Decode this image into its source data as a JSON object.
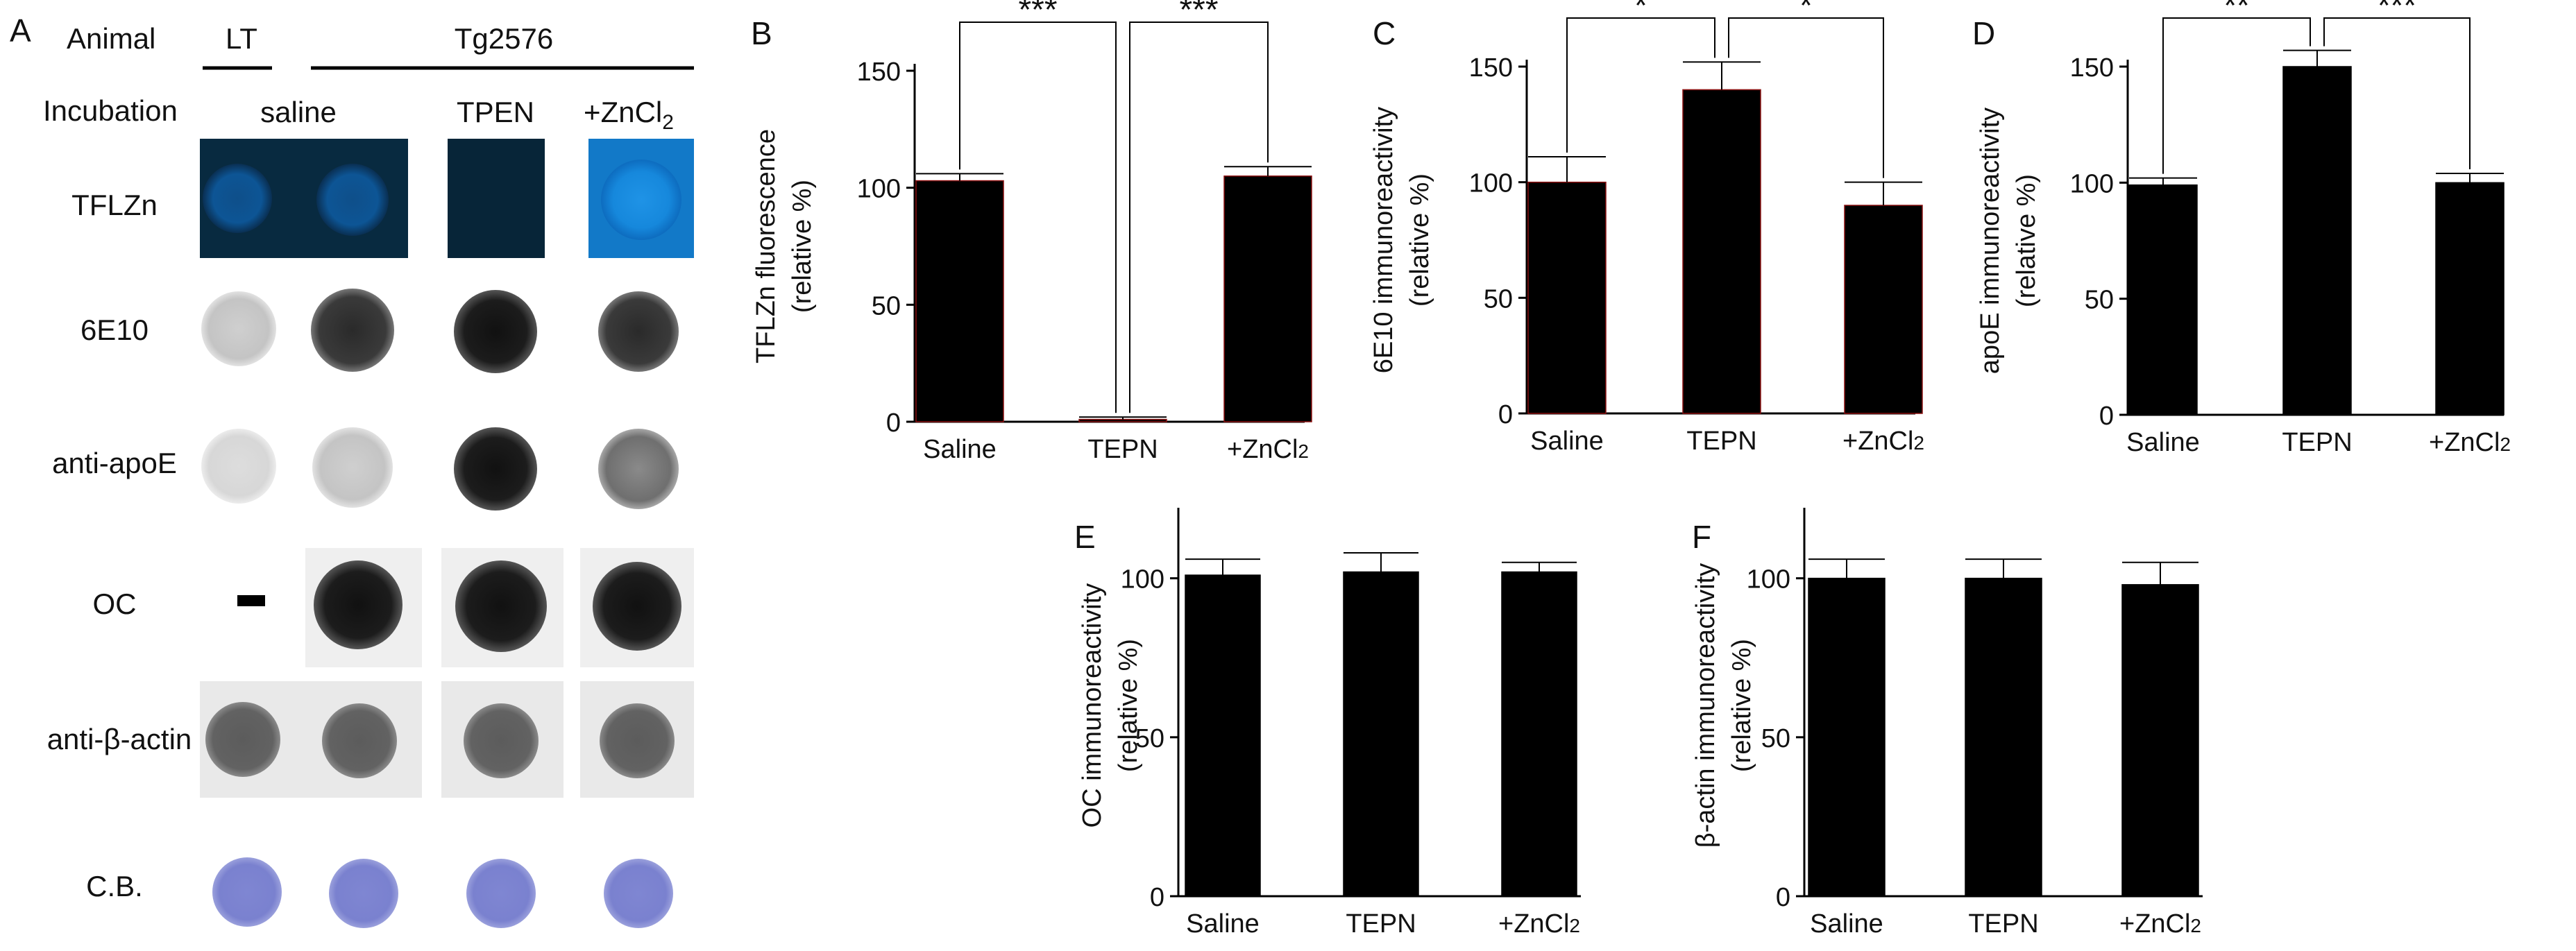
{
  "panel_a": {
    "letter": "A",
    "animal_label": "Animal",
    "incubation_label": "Incubation",
    "groups": {
      "lt": "LT",
      "tg": "Tg2576"
    },
    "incubations": {
      "saline": "saline",
      "tpen": "TPEN",
      "zncl": "+ZnCl",
      "zncl_sub": "2"
    },
    "rows": {
      "tflzn": "TFLZn",
      "e10": "6E10",
      "apoe": "anti-apoE",
      "oc": "OC",
      "actin": "anti-β-actin",
      "cb": "C.B."
    }
  },
  "chart_data": [
    {
      "type": "bar",
      "panel": "B",
      "categories": [
        "Saline",
        "TEPN",
        "+ZnCl2"
      ],
      "values": [
        103,
        1,
        105
      ],
      "errors": [
        3,
        1,
        4
      ],
      "ylabel": "TFLZn fluorescence",
      "ylabel2": "(relative %)",
      "ylim": [
        0,
        150
      ],
      "yticks": [
        0,
        50,
        100,
        150
      ],
      "significance": [
        {
          "from": 0,
          "to": 1,
          "label": "***"
        },
        {
          "from": 1,
          "to": 2,
          "label": "***"
        }
      ]
    },
    {
      "type": "bar",
      "panel": "C",
      "categories": [
        "Saline",
        "TEPN",
        "+ZnCl2"
      ],
      "values": [
        100,
        140,
        90
      ],
      "errors": [
        11,
        12,
        10
      ],
      "ylabel": "6E10 immunoreactivity",
      "ylabel2": "(relative %)",
      "ylim": [
        0,
        150
      ],
      "yticks": [
        0,
        50,
        100,
        150
      ],
      "significance": [
        {
          "from": 0,
          "to": 1,
          "label": "*"
        },
        {
          "from": 1,
          "to": 2,
          "label": "*"
        }
      ]
    },
    {
      "type": "bar",
      "panel": "D",
      "categories": [
        "Saline",
        "TEPN",
        "+ZnCl2"
      ],
      "values": [
        99,
        150,
        100
      ],
      "errors": [
        3,
        7,
        4
      ],
      "ylabel": "apoE immunoreactivity",
      "ylabel2": "(relative %)",
      "ylim": [
        0,
        150
      ],
      "yticks": [
        0,
        50,
        100,
        150
      ],
      "significance": [
        {
          "from": 0,
          "to": 1,
          "label": "**"
        },
        {
          "from": 1,
          "to": 2,
          "label": "***"
        }
      ]
    },
    {
      "type": "bar",
      "panel": "E",
      "categories": [
        "Saline",
        "TEPN",
        "+ZnCl2"
      ],
      "values": [
        101,
        102,
        102
      ],
      "errors": [
        5,
        6,
        3
      ],
      "ylabel": "OC immunoreactivity",
      "ylabel2": "(relative %)",
      "ylim": [
        0,
        120
      ],
      "yticks": [
        0,
        50,
        100
      ],
      "significance": []
    },
    {
      "type": "bar",
      "panel": "F",
      "categories": [
        "Saline",
        "TEPN",
        "+ZnCl2"
      ],
      "values": [
        100,
        100,
        98
      ],
      "errors": [
        6,
        6,
        7
      ],
      "ylabel": "β-actin immunoreactivity",
      "ylabel2": "(relative %)",
      "ylim": [
        0,
        120
      ],
      "yticks": [
        0,
        50,
        100
      ],
      "significance": []
    }
  ]
}
